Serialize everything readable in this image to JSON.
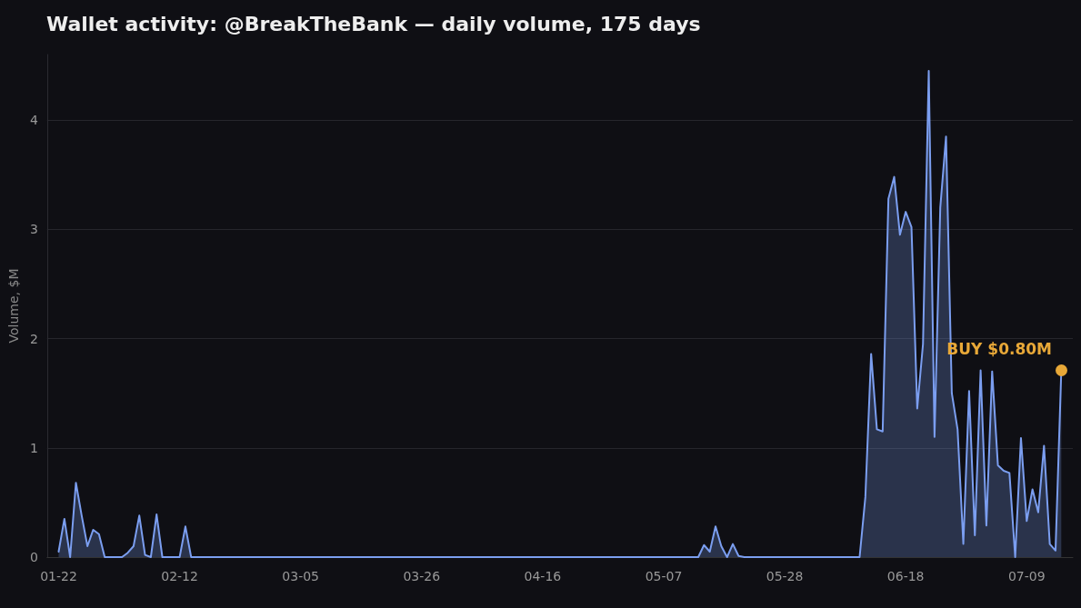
{
  "chart_data": {
    "type": "area",
    "title": "Wallet activity: @BreakTheBank — daily volume, 175 days",
    "ylabel": "Volume, $M",
    "x": [
      "--01-22",
      "--01-23",
      "--01-24",
      "--01-25",
      "--01-26",
      "--01-27",
      "--01-28",
      "--01-29",
      "--01-30",
      "--02-02",
      "--02-03",
      "--02-04",
      "--02-05",
      "--02-06",
      "--02-07",
      "--02-08",
      "--02-09",
      "--02-12",
      "--02-13",
      "--02-14",
      "--05-13",
      "--05-14",
      "--05-15",
      "--05-16",
      "--05-17",
      "--05-18",
      "--05-19",
      "--05-20",
      "--05-21",
      "--06-10",
      "--06-11",
      "--06-12",
      "--06-13",
      "--06-14",
      "--06-15",
      "--06-16",
      "--06-17",
      "--06-18",
      "--06-19",
      "--06-20",
      "--06-21",
      "--06-22",
      "--06-23",
      "--06-24",
      "--06-25",
      "--06-26",
      "--06-27",
      "--06-28",
      "--06-29",
      "--06-30",
      "--07-01",
      "--07-02",
      "--07-03",
      "--07-04",
      "--07-05",
      "--07-06",
      "--07-07",
      "--07-08",
      "--07-09",
      "--07-10",
      "--07-11",
      "--07-12",
      "--07-13",
      "--07-14",
      "--07-15"
    ],
    "series": [
      {
        "color": "#7b9ef0",
        "values": [
          0.05,
          0.35,
          0.0,
          0.68,
          0.38,
          0.1,
          0.25,
          0.21,
          0,
          0,
          0.04,
          0.1,
          0.38,
          0.02,
          0,
          0.39,
          0,
          0,
          0.28,
          0,
          0,
          0.11,
          0.05,
          0.28,
          0.1,
          0,
          0.12,
          0.01,
          0,
          0,
          0.55,
          1.86,
          1.17,
          1.15,
          3.28,
          3.48,
          2.95,
          3.16,
          3.02,
          1.36,
          1.95,
          4.45,
          1.1,
          3.2,
          3.85,
          1.5,
          1.17,
          0.12,
          1.52,
          0.2,
          1.71,
          0.29,
          1.7,
          0.84,
          0.79,
          0.77,
          0,
          1.09,
          0.33,
          0.62,
          0.41,
          1.02,
          0.12,
          0.06,
          1.71
        ]
      }
    ],
    "annotations": [
      {
        "text": "BUY $0.80M",
        "x": "--07-15",
        "y": 1.71
      }
    ],
    "xlim": [
      "--01-20",
      "--07-17"
    ],
    "xticks": [
      {
        "value": "--01-22",
        "label": "01-22"
      },
      {
        "value": "--02-12",
        "label": "02-12"
      },
      {
        "value": "--03-05",
        "label": "03-05"
      },
      {
        "value": "--03-26",
        "label": "03-26"
      },
      {
        "value": "--04-16",
        "label": "04-16"
      },
      {
        "value": "--05-07",
        "label": "05-07"
      },
      {
        "value": "--05-28",
        "label": "05-28"
      },
      {
        "value": "--06-18",
        "label": "06-18"
      },
      {
        "value": "--07-09",
        "label": "07-09"
      }
    ],
    "ylim": [
      0,
      4.6
    ],
    "yticks": [
      0,
      1,
      2,
      3,
      4
    ],
    "grid": "y",
    "marker": "none",
    "line_style": "solid"
  }
}
